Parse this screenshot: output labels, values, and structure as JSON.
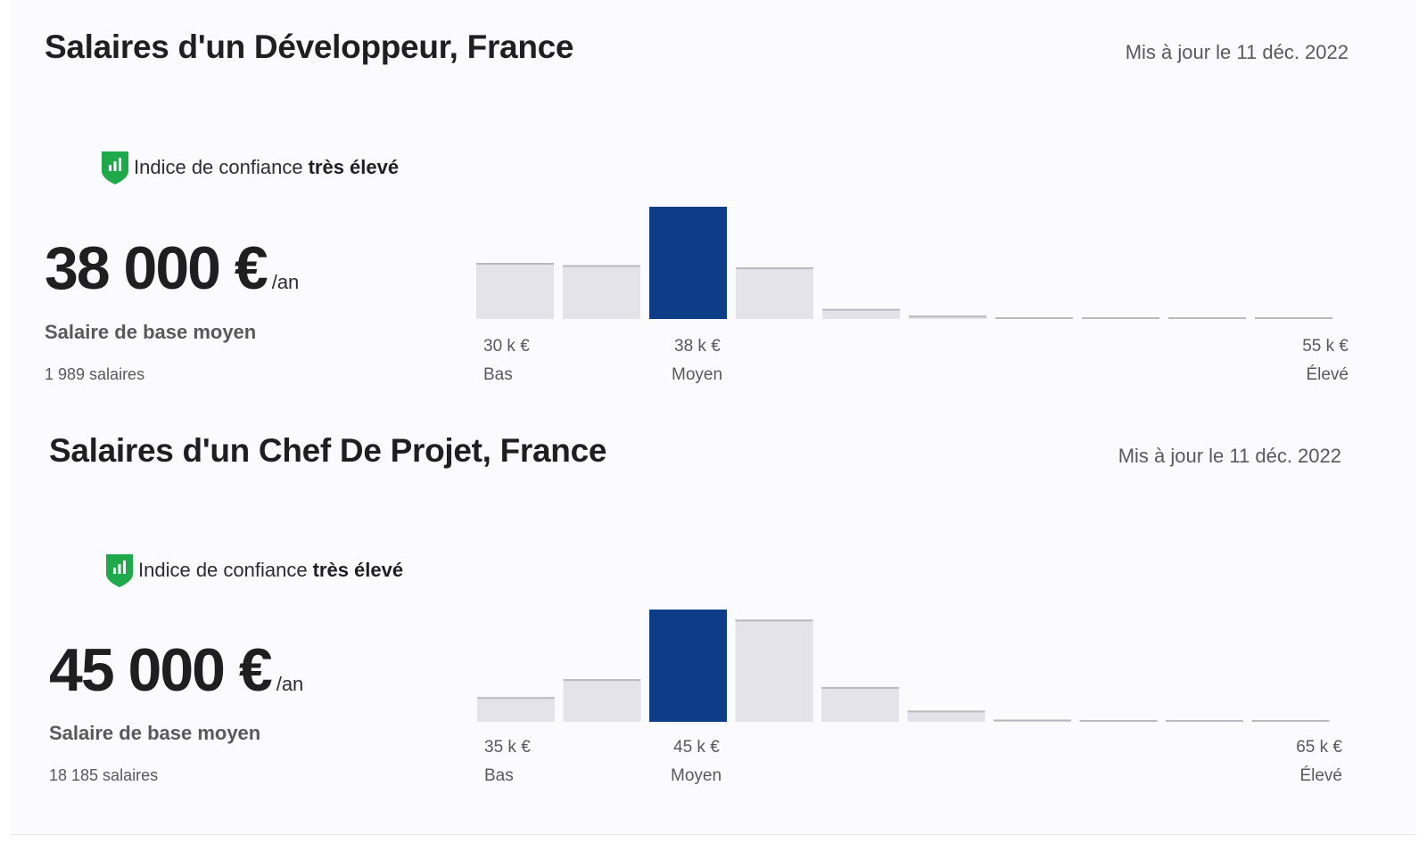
{
  "colors": {
    "highlight_bar": "#0e3d88",
    "bar": "#e4e3ea",
    "bar_top": "#b9b9c2",
    "shield": "#1ea94a"
  },
  "confidence_icon": "green-shield-bar-chart-icon",
  "sections": [
    {
      "title": "Salaires d'un Développeur, France",
      "updated": "Mis à jour le 11 déc. 2022",
      "confidence_prefix": "Indice de confiance",
      "confidence_level": "très élevé",
      "amount": "38 000 €",
      "per": "/an",
      "base_label": "Salaire de base moyen",
      "count": "1 989 salaires",
      "ticks": {
        "low_value": "30 k €",
        "low_label": "Bas",
        "mid_value": "38 k €",
        "mid_label": "Moyen",
        "high_value": "55 k €",
        "high_label": "Élevé"
      }
    },
    {
      "title": "Salaires d'un Chef De Projet, France",
      "updated": "Mis à jour le 11 déc. 2022",
      "confidence_prefix": "Indice de confiance",
      "confidence_level": "très élevé",
      "amount": "45 000 €",
      "per": "/an",
      "base_label": "Salaire de base moyen",
      "count": "18 185 salaires",
      "ticks": {
        "low_value": "35 k €",
        "low_label": "Bas",
        "mid_value": "45 k €",
        "mid_label": "Moyen",
        "high_value": "65 k €",
        "high_label": "Élevé"
      }
    }
  ],
  "chart_data": [
    {
      "type": "bar",
      "categories": [
        "1",
        "2",
        "3",
        "4",
        "5",
        "6",
        "7",
        "8",
        "9",
        "10"
      ],
      "values": [
        50,
        48,
        100,
        46,
        9,
        3,
        1.5,
        1.5,
        1.5,
        1.5
      ],
      "highlight_index": 2,
      "ylim": [
        0,
        100
      ],
      "x_ticks": [
        "30 k €",
        "38 k €",
        "55 k €"
      ],
      "x_tick_labels": [
        "Bas",
        "Moyen",
        "Élevé"
      ]
    },
    {
      "type": "bar",
      "categories": [
        "1",
        "2",
        "3",
        "4",
        "5",
        "6",
        "7",
        "8",
        "9",
        "10"
      ],
      "values": [
        22,
        38,
        100,
        91,
        31,
        10,
        2,
        1.5,
        1.5,
        1.5
      ],
      "highlight_index": 2,
      "ylim": [
        0,
        100
      ],
      "x_ticks": [
        "35 k €",
        "45 k €",
        "65 k €"
      ],
      "x_tick_labels": [
        "Bas",
        "Moyen",
        "Élevé"
      ]
    }
  ]
}
